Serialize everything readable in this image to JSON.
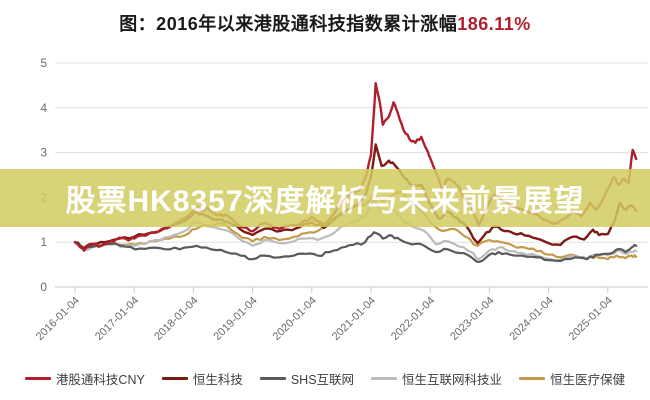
{
  "title": {
    "prefix": "图：2016年以来港股通科技指数累计涨幅",
    "highlight": "186.11%",
    "highlight_color": "#b01f2e",
    "text_color": "#1a1a1a"
  },
  "overlay": {
    "text": "股票HK8357深度解析与未来前景展望",
    "bg_color": "#d2cc60",
    "bg_opacity": 0.85,
    "text_color": "#ffffff"
  },
  "chart_data": {
    "type": "line",
    "title": "2016年以来港股通科技指数累计涨幅186.11%",
    "x_tick_labels": [
      "2016-01-04",
      "2017-01-04",
      "2018-01-04",
      "2019-01-04",
      "2020-01-04",
      "2021-01-04",
      "2022-01-04",
      "2023-01-04",
      "2024-01-04",
      "2025-01-04"
    ],
    "x_tick_years": [
      2016,
      2017,
      2018,
      2019,
      2020,
      2021,
      2022,
      2023,
      2024,
      2025
    ],
    "ylim": [
      0,
      5
    ],
    "y_ticks": [
      0,
      1,
      2,
      3,
      4,
      5
    ],
    "grid": true,
    "legend_position": "bottom",
    "axis_label_color": "#6b6b6b",
    "grid_color": "#e0e0e0",
    "series": [
      {
        "name": "港股通科技CNY",
        "color": "#b01f2e",
        "width": 2.4,
        "points": [
          [
            2016.0,
            1.0
          ],
          [
            2016.08,
            0.9
          ],
          [
            2016.15,
            0.81
          ],
          [
            2016.3,
            0.95
          ],
          [
            2016.45,
            0.92
          ],
          [
            2016.6,
            1.02
          ],
          [
            2016.75,
            1.1
          ],
          [
            2016.9,
            1.04
          ],
          [
            2017.0,
            1.08
          ],
          [
            2017.15,
            1.15
          ],
          [
            2017.3,
            1.22
          ],
          [
            2017.45,
            1.28
          ],
          [
            2017.6,
            1.34
          ],
          [
            2017.75,
            1.45
          ],
          [
            2017.9,
            1.58
          ],
          [
            2018.05,
            1.78
          ],
          [
            2018.15,
            1.7
          ],
          [
            2018.25,
            1.76
          ],
          [
            2018.4,
            1.6
          ],
          [
            2018.55,
            1.62
          ],
          [
            2018.7,
            1.45
          ],
          [
            2018.85,
            1.33
          ],
          [
            2019.0,
            1.24
          ],
          [
            2019.15,
            1.42
          ],
          [
            2019.3,
            1.38
          ],
          [
            2019.45,
            1.3
          ],
          [
            2019.6,
            1.36
          ],
          [
            2019.75,
            1.38
          ],
          [
            2019.9,
            1.48
          ],
          [
            2020.0,
            1.56
          ],
          [
            2020.1,
            1.48
          ],
          [
            2020.2,
            1.38
          ],
          [
            2020.35,
            1.6
          ],
          [
            2020.5,
            1.88
          ],
          [
            2020.65,
            2.1
          ],
          [
            2020.8,
            2.16
          ],
          [
            2020.9,
            2.42
          ],
          [
            2021.0,
            2.95
          ],
          [
            2021.08,
            4.55
          ],
          [
            2021.15,
            4.1
          ],
          [
            2021.2,
            3.62
          ],
          [
            2021.3,
            3.8
          ],
          [
            2021.38,
            4.12
          ],
          [
            2021.45,
            3.9
          ],
          [
            2021.55,
            3.5
          ],
          [
            2021.65,
            3.3
          ],
          [
            2021.75,
            3.22
          ],
          [
            2021.85,
            3.35
          ],
          [
            2021.95,
            3.05
          ],
          [
            2022.0,
            2.88
          ],
          [
            2022.1,
            2.55
          ],
          [
            2022.2,
            2.18
          ],
          [
            2022.3,
            2.42
          ],
          [
            2022.45,
            2.28
          ],
          [
            2022.6,
            1.95
          ],
          [
            2022.7,
            1.78
          ],
          [
            2022.82,
            1.38
          ],
          [
            2022.95,
            1.75
          ],
          [
            2023.08,
            2.05
          ],
          [
            2023.2,
            1.95
          ],
          [
            2023.35,
            1.82
          ],
          [
            2023.5,
            1.75
          ],
          [
            2023.65,
            1.68
          ],
          [
            2023.8,
            1.62
          ],
          [
            2023.95,
            1.5
          ],
          [
            2024.1,
            1.42
          ],
          [
            2024.25,
            1.52
          ],
          [
            2024.4,
            1.68
          ],
          [
            2024.55,
            1.58
          ],
          [
            2024.7,
            1.88
          ],
          [
            2024.8,
            1.72
          ],
          [
            2024.9,
            1.92
          ],
          [
            2025.0,
            2.18
          ],
          [
            2025.1,
            2.45
          ],
          [
            2025.18,
            2.28
          ],
          [
            2025.28,
            2.42
          ],
          [
            2025.35,
            2.32
          ],
          [
            2025.42,
            3.06
          ],
          [
            2025.48,
            2.86
          ]
        ]
      },
      {
        "name": "恒生科技",
        "color": "#7d1a12",
        "width": 2.4,
        "points": [
          [
            2016.0,
            1.0
          ],
          [
            2016.15,
            0.86
          ],
          [
            2016.3,
            0.96
          ],
          [
            2016.5,
            1.0
          ],
          [
            2016.75,
            1.08
          ],
          [
            2017.0,
            1.12
          ],
          [
            2017.25,
            1.2
          ],
          [
            2017.5,
            1.3
          ],
          [
            2017.75,
            1.42
          ],
          [
            2017.9,
            1.52
          ],
          [
            2018.05,
            1.68
          ],
          [
            2018.2,
            1.6
          ],
          [
            2018.4,
            1.5
          ],
          [
            2018.6,
            1.44
          ],
          [
            2018.8,
            1.28
          ],
          [
            2019.0,
            1.16
          ],
          [
            2019.2,
            1.3
          ],
          [
            2019.4,
            1.24
          ],
          [
            2019.6,
            1.28
          ],
          [
            2019.8,
            1.34
          ],
          [
            2020.0,
            1.44
          ],
          [
            2020.2,
            1.32
          ],
          [
            2020.4,
            1.55
          ],
          [
            2020.6,
            1.72
          ],
          [
            2020.8,
            1.86
          ],
          [
            2020.92,
            2.1
          ],
          [
            2021.0,
            2.45
          ],
          [
            2021.08,
            3.18
          ],
          [
            2021.18,
            2.7
          ],
          [
            2021.3,
            2.82
          ],
          [
            2021.4,
            2.72
          ],
          [
            2021.55,
            2.45
          ],
          [
            2021.7,
            2.25
          ],
          [
            2021.85,
            2.28
          ],
          [
            2022.0,
            1.85
          ],
          [
            2022.15,
            1.52
          ],
          [
            2022.3,
            1.68
          ],
          [
            2022.45,
            1.55
          ],
          [
            2022.6,
            1.38
          ],
          [
            2022.8,
            0.98
          ],
          [
            2022.95,
            1.22
          ],
          [
            2023.1,
            1.35
          ],
          [
            2023.25,
            1.25
          ],
          [
            2023.4,
            1.2
          ],
          [
            2023.6,
            1.15
          ],
          [
            2023.8,
            1.08
          ],
          [
            2024.0,
            0.98
          ],
          [
            2024.2,
            0.94
          ],
          [
            2024.4,
            1.12
          ],
          [
            2024.6,
            1.06
          ],
          [
            2024.75,
            1.28
          ],
          [
            2024.85,
            1.16
          ],
          [
            2025.0,
            1.18
          ],
          [
            2025.1,
            1.42
          ],
          [
            2025.2,
            1.88
          ],
          [
            2025.3,
            1.72
          ],
          [
            2025.4,
            1.82
          ],
          [
            2025.48,
            1.7
          ]
        ]
      },
      {
        "name": "SHS互联网",
        "color": "#5a5a5a",
        "width": 2.2,
        "points": [
          [
            2016.0,
            1.0
          ],
          [
            2016.15,
            0.88
          ],
          [
            2016.35,
            0.92
          ],
          [
            2016.6,
            0.96
          ],
          [
            2016.85,
            0.9
          ],
          [
            2017.1,
            0.86
          ],
          [
            2017.35,
            0.88
          ],
          [
            2017.6,
            0.84
          ],
          [
            2017.85,
            0.88
          ],
          [
            2018.05,
            0.92
          ],
          [
            2018.3,
            0.84
          ],
          [
            2018.55,
            0.78
          ],
          [
            2018.8,
            0.7
          ],
          [
            2019.0,
            0.62
          ],
          [
            2019.2,
            0.7
          ],
          [
            2019.45,
            0.66
          ],
          [
            2019.7,
            0.7
          ],
          [
            2019.9,
            0.74
          ],
          [
            2020.1,
            0.7
          ],
          [
            2020.3,
            0.78
          ],
          [
            2020.5,
            0.88
          ],
          [
            2020.7,
            0.94
          ],
          [
            2020.9,
            1.0
          ],
          [
            2021.05,
            1.22
          ],
          [
            2021.2,
            1.08
          ],
          [
            2021.35,
            1.15
          ],
          [
            2021.5,
            1.05
          ],
          [
            2021.7,
            0.95
          ],
          [
            2021.9,
            0.92
          ],
          [
            2022.1,
            0.78
          ],
          [
            2022.3,
            0.84
          ],
          [
            2022.5,
            0.76
          ],
          [
            2022.7,
            0.66
          ],
          [
            2022.82,
            0.56
          ],
          [
            2023.0,
            0.72
          ],
          [
            2023.15,
            0.78
          ],
          [
            2023.35,
            0.72
          ],
          [
            2023.55,
            0.7
          ],
          [
            2023.8,
            0.66
          ],
          [
            2024.0,
            0.6
          ],
          [
            2024.2,
            0.58
          ],
          [
            2024.45,
            0.66
          ],
          [
            2024.65,
            0.62
          ],
          [
            2024.8,
            0.72
          ],
          [
            2025.0,
            0.74
          ],
          [
            2025.15,
            0.84
          ],
          [
            2025.3,
            0.78
          ],
          [
            2025.4,
            0.88
          ],
          [
            2025.48,
            0.92
          ]
        ]
      },
      {
        "name": "恒生互联网科技业",
        "color": "#bcbcbc",
        "width": 2.2,
        "points": [
          [
            2016.0,
            1.0
          ],
          [
            2016.15,
            0.84
          ],
          [
            2016.35,
            0.9
          ],
          [
            2016.6,
            0.95
          ],
          [
            2016.85,
            0.92
          ],
          [
            2017.1,
            0.96
          ],
          [
            2017.35,
            1.05
          ],
          [
            2017.6,
            1.12
          ],
          [
            2017.85,
            1.25
          ],
          [
            2018.05,
            1.45
          ],
          [
            2018.25,
            1.35
          ],
          [
            2018.5,
            1.28
          ],
          [
            2018.75,
            1.1
          ],
          [
            2019.0,
            0.92
          ],
          [
            2019.2,
            1.05
          ],
          [
            2019.45,
            0.98
          ],
          [
            2019.7,
            1.02
          ],
          [
            2019.9,
            1.08
          ],
          [
            2020.1,
            1.05
          ],
          [
            2020.3,
            1.15
          ],
          [
            2020.5,
            1.35
          ],
          [
            2020.7,
            1.45
          ],
          [
            2020.9,
            1.58
          ],
          [
            2021.05,
            1.95
          ],
          [
            2021.2,
            1.65
          ],
          [
            2021.35,
            1.75
          ],
          [
            2021.5,
            1.55
          ],
          [
            2021.7,
            1.35
          ],
          [
            2021.9,
            1.25
          ],
          [
            2022.1,
            0.95
          ],
          [
            2022.3,
            1.02
          ],
          [
            2022.5,
            0.9
          ],
          [
            2022.7,
            0.78
          ],
          [
            2022.82,
            0.62
          ],
          [
            2023.0,
            0.82
          ],
          [
            2023.15,
            0.88
          ],
          [
            2023.35,
            0.8
          ],
          [
            2023.55,
            0.76
          ],
          [
            2023.8,
            0.7
          ],
          [
            2024.0,
            0.63
          ],
          [
            2024.2,
            0.6
          ],
          [
            2024.45,
            0.68
          ],
          [
            2024.65,
            0.64
          ],
          [
            2024.8,
            0.72
          ],
          [
            2025.0,
            0.7
          ],
          [
            2025.15,
            0.8
          ],
          [
            2025.3,
            0.74
          ],
          [
            2025.4,
            0.78
          ],
          [
            2025.48,
            0.8
          ]
        ]
      },
      {
        "name": "恒生医疗保健",
        "color": "#c49a48",
        "width": 2.2,
        "points": [
          [
            2016.0,
            1.0
          ],
          [
            2016.15,
            0.88
          ],
          [
            2016.35,
            0.92
          ],
          [
            2016.6,
            0.96
          ],
          [
            2016.85,
            0.94
          ],
          [
            2017.1,
            0.98
          ],
          [
            2017.35,
            1.02
          ],
          [
            2017.6,
            1.08
          ],
          [
            2017.85,
            1.15
          ],
          [
            2018.05,
            1.3
          ],
          [
            2018.25,
            1.38
          ],
          [
            2018.5,
            1.42
          ],
          [
            2018.75,
            1.18
          ],
          [
            2019.0,
            1.02
          ],
          [
            2019.2,
            1.12
          ],
          [
            2019.45,
            1.05
          ],
          [
            2019.7,
            1.12
          ],
          [
            2019.9,
            1.2
          ],
          [
            2020.1,
            1.25
          ],
          [
            2020.3,
            1.42
          ],
          [
            2020.5,
            1.65
          ],
          [
            2020.7,
            1.8
          ],
          [
            2020.9,
            1.85
          ],
          [
            2021.05,
            2.05
          ],
          [
            2021.2,
            1.92
          ],
          [
            2021.35,
            2.02
          ],
          [
            2021.5,
            2.12
          ],
          [
            2021.65,
            1.95
          ],
          [
            2021.85,
            1.7
          ],
          [
            2022.0,
            1.45
          ],
          [
            2022.2,
            1.25
          ],
          [
            2022.4,
            1.3
          ],
          [
            2022.6,
            1.12
          ],
          [
            2022.8,
            0.92
          ],
          [
            2023.0,
            1.05
          ],
          [
            2023.2,
            1.0
          ],
          [
            2023.4,
            0.92
          ],
          [
            2023.6,
            0.88
          ],
          [
            2023.8,
            0.8
          ],
          [
            2024.0,
            0.72
          ],
          [
            2024.2,
            0.66
          ],
          [
            2024.45,
            0.7
          ],
          [
            2024.65,
            0.62
          ],
          [
            2024.8,
            0.68
          ],
          [
            2025.0,
            0.62
          ],
          [
            2025.15,
            0.7
          ],
          [
            2025.3,
            0.64
          ],
          [
            2025.4,
            0.7
          ],
          [
            2025.48,
            0.67
          ]
        ]
      }
    ]
  }
}
